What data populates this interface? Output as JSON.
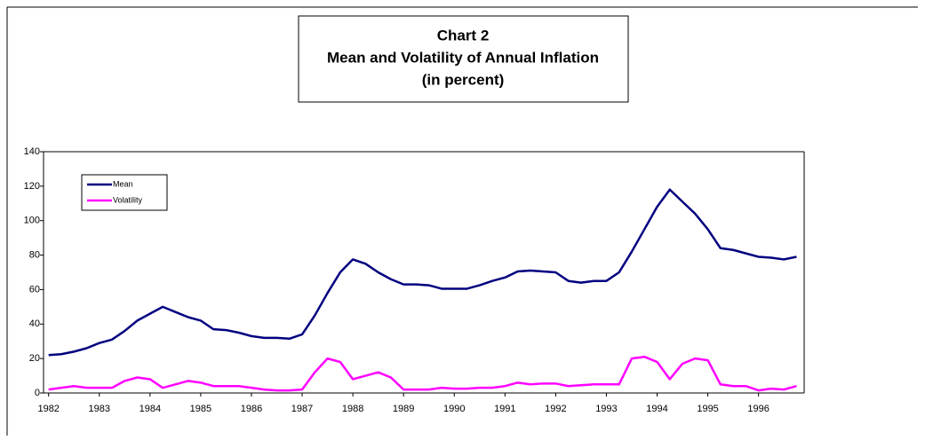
{
  "chart_data": {
    "type": "line",
    "title": [
      "Chart 2",
      "Mean and Volatility of Annual Inflation",
      "(in percent)"
    ],
    "x": [
      1982,
      1982.25,
      1982.5,
      1982.75,
      1983,
      1983.25,
      1983.5,
      1983.75,
      1984,
      1984.25,
      1984.5,
      1984.75,
      1985,
      1985.25,
      1985.5,
      1985.75,
      1986,
      1986.25,
      1986.5,
      1986.75,
      1987,
      1987.25,
      1987.5,
      1987.75,
      1988,
      1988.25,
      1988.5,
      1988.75,
      1989,
      1989.25,
      1989.5,
      1989.75,
      1990,
      1990.25,
      1990.5,
      1990.75,
      1991,
      1991.25,
      1991.5,
      1991.75,
      1992,
      1992.25,
      1992.5,
      1992.75,
      1993,
      1993.25,
      1993.5,
      1993.75,
      1994,
      1994.25,
      1994.5,
      1994.75,
      1995,
      1995.25,
      1995.5,
      1995.75,
      1996,
      1996.25,
      1996.5,
      1996.75
    ],
    "series": [
      {
        "name": "Mean",
        "color": "#000080",
        "values": [
          22,
          22.5,
          24,
          26,
          29,
          31,
          36,
          42,
          46,
          50,
          47,
          44,
          42,
          37,
          36.5,
          35,
          33,
          32,
          32,
          31.5,
          34,
          45,
          58,
          70,
          77.5,
          75,
          70,
          66,
          63,
          63,
          62.5,
          60.5,
          60.5,
          60.5,
          62.5,
          65,
          67,
          70.5,
          71,
          70.5,
          70,
          65,
          64,
          65,
          65,
          70,
          82,
          95,
          108,
          118,
          111,
          104,
          95,
          84,
          83,
          81,
          79,
          78.5,
          77.5,
          79
        ]
      },
      {
        "name": "Volatility",
        "color": "#ff00ff",
        "values": [
          2,
          3,
          4,
          3,
          3,
          3,
          7,
          9,
          8,
          3,
          5,
          7,
          6,
          4,
          4,
          4,
          3,
          2,
          1.5,
          1.5,
          2,
          12,
          20,
          18,
          8,
          10,
          12,
          9,
          2,
          2,
          2,
          3,
          2.5,
          2.5,
          3,
          3,
          4,
          6,
          5,
          5.5,
          5.5,
          4,
          4.5,
          5,
          5,
          5,
          20,
          21,
          18,
          8,
          17,
          20,
          19,
          5,
          4,
          4,
          1.5,
          2.5,
          2,
          4
        ]
      }
    ],
    "xlim": [
      1981.9,
      1996.9
    ],
    "xticks": [
      1982,
      1983,
      1984,
      1985,
      1986,
      1987,
      1988,
      1989,
      1990,
      1991,
      1992,
      1993,
      1994,
      1995,
      1996
    ],
    "ylim": [
      0,
      140
    ],
    "yticks": [
      0,
      20,
      40,
      60,
      80,
      100,
      120,
      140
    ],
    "grid": false,
    "legend": "upper left"
  }
}
